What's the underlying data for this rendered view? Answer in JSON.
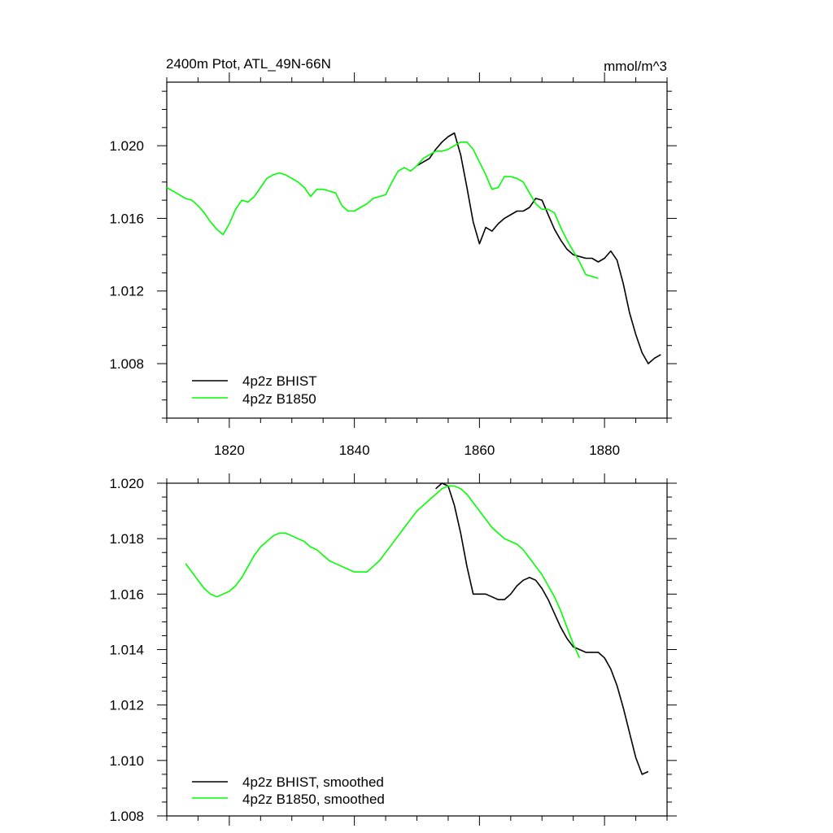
{
  "chart_data": [
    {
      "type": "line",
      "title_left": "2400m Ptot, ATL_49N-66N",
      "title_right": "mmol/m^3",
      "xlim": [
        1810,
        1890
      ],
      "ylim": [
        1.005,
        1.0235
      ],
      "x_ticks": [
        1820,
        1840,
        1860,
        1880
      ],
      "x_tick_labels": [
        "1820",
        "1840",
        "1860",
        "1880"
      ],
      "y_ticks": [
        1.008,
        1.012,
        1.016,
        1.02
      ],
      "y_tick_labels": [
        "1.008",
        "1.012",
        "1.016",
        "1.020"
      ],
      "grid": false,
      "legend_position": "bottom-left",
      "series": [
        {
          "name": "4p2z BHIST",
          "color": "#000000",
          "x": [
            1850,
            1852,
            1853,
            1854,
            1855,
            1856,
            1857,
            1858,
            1859,
            1860,
            1861,
            1862,
            1863,
            1864,
            1865,
            1866,
            1867,
            1868,
            1869,
            1870,
            1871,
            1872,
            1873,
            1874,
            1875,
            1876,
            1877,
            1878,
            1879,
            1880,
            1881,
            1882,
            1883,
            1884,
            1885,
            1886,
            1887,
            1888,
            1889
          ],
          "y": [
            1.0189,
            1.0193,
            1.0198,
            1.0202,
            1.0205,
            1.0207,
            1.0195,
            1.0177,
            1.0158,
            1.0146,
            1.0155,
            1.0153,
            1.0157,
            1.016,
            1.0162,
            1.0164,
            1.0164,
            1.0166,
            1.0171,
            1.017,
            1.0162,
            1.0154,
            1.0148,
            1.0143,
            1.014,
            1.0139,
            1.0138,
            1.0138,
            1.0136,
            1.0138,
            1.0142,
            1.0137,
            1.0124,
            1.0108,
            1.0096,
            1.0086,
            1.008,
            1.0083,
            1.0085
          ]
        },
        {
          "name": "4p2z B1850",
          "color": "#00ff00",
          "x": [
            1810,
            1811,
            1812,
            1813,
            1814,
            1815,
            1816,
            1817,
            1818,
            1819,
            1820,
            1821,
            1822,
            1823,
            1824,
            1825,
            1826,
            1827,
            1828,
            1829,
            1830,
            1831,
            1832,
            1833,
            1834,
            1835,
            1836,
            1837,
            1838,
            1839,
            1840,
            1841,
            1842,
            1843,
            1844,
            1845,
            1846,
            1847,
            1848,
            1849,
            1850,
            1851,
            1852,
            1853,
            1854,
            1855,
            1856,
            1857,
            1858,
            1859,
            1860,
            1861,
            1862,
            1863,
            1864,
            1865,
            1866,
            1867,
            1868,
            1869,
            1870,
            1871,
            1872,
            1873,
            1874,
            1875,
            1876,
            1877,
            1878,
            1879
          ],
          "y": [
            1.0177,
            1.0175,
            1.0173,
            1.0171,
            1.017,
            1.0167,
            1.0163,
            1.0158,
            1.0154,
            1.0151,
            1.0157,
            1.0165,
            1.017,
            1.0169,
            1.0172,
            1.0177,
            1.0182,
            1.0184,
            1.0185,
            1.0184,
            1.0182,
            1.018,
            1.0177,
            1.0172,
            1.0176,
            1.0176,
            1.0175,
            1.0174,
            1.0167,
            1.0164,
            1.0164,
            1.0166,
            1.0168,
            1.0171,
            1.0172,
            1.0173,
            1.018,
            1.0186,
            1.0188,
            1.0186,
            1.0189,
            1.0193,
            1.0195,
            1.0197,
            1.0197,
            1.0198,
            1.02,
            1.0202,
            1.0202,
            1.0198,
            1.0191,
            1.0184,
            1.0176,
            1.0177,
            1.0183,
            1.0183,
            1.0182,
            1.018,
            1.0174,
            1.0168,
            1.0165,
            1.0165,
            1.0163,
            1.0155,
            1.0148,
            1.0142,
            1.0136,
            1.0129,
            1.0128,
            1.0127
          ]
        }
      ]
    },
    {
      "type": "line",
      "xlim": [
        1810,
        1890
      ],
      "ylim": [
        1.008,
        1.02
      ],
      "x_ticks": [
        1820,
        1840,
        1860,
        1880
      ],
      "y_ticks": [
        1.008,
        1.01,
        1.012,
        1.014,
        1.016,
        1.018,
        1.02
      ],
      "y_tick_labels": [
        "1.008",
        "1.010",
        "1.012",
        "1.014",
        "1.016",
        "1.018",
        "1.020"
      ],
      "grid": false,
      "legend_position": "bottom-left",
      "series": [
        {
          "name": "4p2z BHIST, smoothed",
          "color": "#000000",
          "x": [
            1853,
            1854,
            1855,
            1856,
            1857,
            1858,
            1859,
            1860,
            1861,
            1862,
            1863,
            1864,
            1865,
            1866,
            1867,
            1868,
            1869,
            1870,
            1871,
            1872,
            1873,
            1874,
            1875,
            1876,
            1877,
            1878,
            1879,
            1880,
            1881,
            1882,
            1883,
            1884,
            1885,
            1886,
            1887
          ],
          "y": [
            1.0198,
            1.02,
            1.0199,
            1.0192,
            1.0182,
            1.017,
            1.016,
            1.016,
            1.016,
            1.0159,
            1.0158,
            1.0158,
            1.016,
            1.0163,
            1.0165,
            1.0166,
            1.0165,
            1.0162,
            1.0158,
            1.0153,
            1.0148,
            1.0144,
            1.0141,
            1.014,
            1.0139,
            1.0139,
            1.0139,
            1.0137,
            1.0133,
            1.0127,
            1.0119,
            1.011,
            1.0101,
            1.0095,
            1.0096
          ]
        },
        {
          "name": "4p2z B1850, smoothed",
          "color": "#00ff00",
          "x": [
            1813,
            1814,
            1815,
            1816,
            1817,
            1818,
            1819,
            1820,
            1821,
            1822,
            1823,
            1824,
            1825,
            1826,
            1827,
            1828,
            1829,
            1830,
            1831,
            1832,
            1833,
            1834,
            1835,
            1836,
            1837,
            1838,
            1839,
            1840,
            1841,
            1842,
            1843,
            1844,
            1845,
            1846,
            1847,
            1848,
            1849,
            1850,
            1851,
            1852,
            1853,
            1854,
            1855,
            1856,
            1857,
            1858,
            1859,
            1860,
            1861,
            1862,
            1863,
            1864,
            1865,
            1866,
            1867,
            1868,
            1869,
            1870,
            1871,
            1872,
            1873,
            1874,
            1875,
            1876
          ],
          "y": [
            1.0171,
            1.0168,
            1.0165,
            1.0162,
            1.016,
            1.0159,
            1.016,
            1.0161,
            1.0163,
            1.0166,
            1.017,
            1.0174,
            1.0177,
            1.0179,
            1.0181,
            1.0182,
            1.0182,
            1.0181,
            1.018,
            1.0179,
            1.0177,
            1.0176,
            1.0174,
            1.0172,
            1.0171,
            1.017,
            1.0169,
            1.0168,
            1.0168,
            1.0168,
            1.017,
            1.0172,
            1.0175,
            1.0178,
            1.0181,
            1.0184,
            1.0187,
            1.019,
            1.0192,
            1.0194,
            1.0196,
            1.0198,
            1.0199,
            1.0199,
            1.0198,
            1.0196,
            1.0193,
            1.019,
            1.0187,
            1.0184,
            1.0182,
            1.018,
            1.0179,
            1.0178,
            1.0176,
            1.0173,
            1.017,
            1.0167,
            1.0163,
            1.0159,
            1.0154,
            1.0148,
            1.0142,
            1.0137
          ]
        }
      ]
    }
  ]
}
